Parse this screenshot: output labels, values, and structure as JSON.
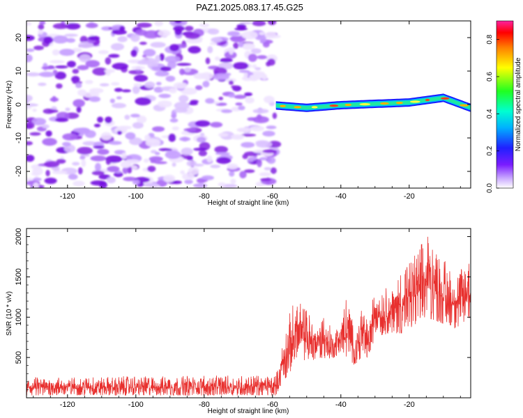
{
  "title": "PAZ1.2025.083.17.45.G25",
  "chart_data": [
    {
      "type": "heatmap",
      "xlabel": "Height of straight line (km)",
      "ylabel": "Frequency (Hz)",
      "xlim": [
        -132,
        -2
      ],
      "ylim": [
        -25,
        25
      ],
      "x_ticks": [
        "-120",
        "-100",
        "-80",
        "-60",
        "-40",
        "-20"
      ],
      "y_ticks": [
        "-20",
        "-10",
        "0",
        "10",
        "20"
      ],
      "colorbar": {
        "label": "Normalized spectral amplitude",
        "ticks": [
          "0.0",
          "0.2",
          "0.4",
          "0.6",
          "0.8"
        ],
        "range": [
          0,
          0.9
        ]
      },
      "description_values": {
        "noise_region_x": [
          -132,
          -59
        ],
        "signal_start_x": -59,
        "signal_track": [
          {
            "x": -59,
            "f": -0.3
          },
          {
            "x": -50,
            "f": -1.0
          },
          {
            "x": -40,
            "f": -0.2
          },
          {
            "x": -30,
            "f": 0.2
          },
          {
            "x": -20,
            "f": 0.6
          },
          {
            "x": -10,
            "f": 2.0
          },
          {
            "x": -2,
            "f": -1.0
          }
        ]
      },
      "colors": {
        "noise": "#8a2be2",
        "signal_peak": "#ff2020"
      }
    },
    {
      "type": "line",
      "xlabel": "Height of straight line (km)",
      "ylabel": "SNR (10 * v/v)",
      "xlim": [
        -132,
        -2
      ],
      "ylim": [
        0,
        2100
      ],
      "x_ticks": [
        "-120",
        "-100",
        "-80",
        "-60",
        "-40",
        "-20"
      ],
      "y_ticks": [
        "500",
        "1000",
        "1500",
        "2000"
      ],
      "series": [
        {
          "color": "#e8302e",
          "envelope": [
            {
              "x": -132,
              "low": 30,
              "high": 260
            },
            {
              "x": -59,
              "low": 30,
              "high": 280
            },
            {
              "x": -57,
              "low": 200,
              "high": 700
            },
            {
              "x": -55,
              "low": 300,
              "high": 1050
            },
            {
              "x": -53,
              "low": 500,
              "high": 1300
            },
            {
              "x": -50,
              "low": 450,
              "high": 1100
            },
            {
              "x": -47,
              "low": 480,
              "high": 900
            },
            {
              "x": -45,
              "low": 470,
              "high": 1050
            },
            {
              "x": -42,
              "low": 500,
              "high": 800
            },
            {
              "x": -40,
              "low": 550,
              "high": 1050
            },
            {
              "x": -38,
              "low": 500,
              "high": 1300
            },
            {
              "x": -36,
              "low": 400,
              "high": 800
            },
            {
              "x": -34,
              "low": 500,
              "high": 1250
            },
            {
              "x": -32,
              "low": 500,
              "high": 900
            },
            {
              "x": -30,
              "low": 750,
              "high": 1450
            },
            {
              "x": -26,
              "low": 800,
              "high": 1350
            },
            {
              "x": -22,
              "low": 800,
              "high": 1650
            },
            {
              "x": -18,
              "low": 900,
              "high": 1800
            },
            {
              "x": -15,
              "low": 1000,
              "high": 2050
            },
            {
              "x": -12,
              "low": 950,
              "high": 1950
            },
            {
              "x": -9,
              "low": 900,
              "high": 1650
            },
            {
              "x": -6,
              "low": 850,
              "high": 1600
            },
            {
              "x": -2,
              "low": 1000,
              "high": 1750
            }
          ]
        }
      ]
    }
  ]
}
